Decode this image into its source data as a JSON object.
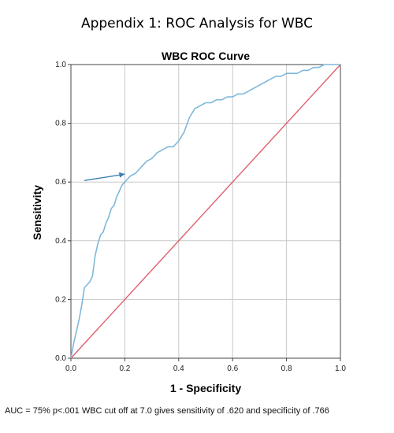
{
  "page": {
    "title": "Appendix 1: ROC Analysis for WBC",
    "footnote": "AUC = 75%  p<.001  WBC cut off at 7.0 gives sensitivity of .620 and specificity of .766"
  },
  "colors": {
    "roc_curve": "#7fb8da",
    "reference_line": "#e0606e",
    "arrow": "#3d82b0",
    "grid": "#c8c8c8",
    "axis": "#444444"
  },
  "chart_data": {
    "type": "line",
    "title": "WBC ROC Curve",
    "xlabel": "1 - Specificity",
    "ylabel": "Sensitivity",
    "xlim": [
      0,
      1
    ],
    "ylim": [
      0,
      1
    ],
    "x_ticks": [
      "0.0",
      "0.2",
      "0.4",
      "0.6",
      "0.8",
      "1.0"
    ],
    "y_ticks": [
      "0.0",
      "0.2",
      "0.4",
      "0.6",
      "0.8",
      "1.0"
    ],
    "grid": true,
    "series": [
      {
        "kind": "roc",
        "points": [
          [
            0.0,
            0.0
          ],
          [
            0.01,
            0.05
          ],
          [
            0.02,
            0.09
          ],
          [
            0.03,
            0.13
          ],
          [
            0.04,
            0.18
          ],
          [
            0.05,
            0.24
          ],
          [
            0.06,
            0.25
          ],
          [
            0.07,
            0.26
          ],
          [
            0.08,
            0.28
          ],
          [
            0.09,
            0.35
          ],
          [
            0.1,
            0.39
          ],
          [
            0.11,
            0.42
          ],
          [
            0.12,
            0.43
          ],
          [
            0.13,
            0.46
          ],
          [
            0.14,
            0.48
          ],
          [
            0.15,
            0.51
          ],
          [
            0.16,
            0.52
          ],
          [
            0.17,
            0.55
          ],
          [
            0.18,
            0.57
          ],
          [
            0.19,
            0.59
          ],
          [
            0.2,
            0.6
          ],
          [
            0.21,
            0.61
          ],
          [
            0.22,
            0.62
          ],
          [
            0.24,
            0.63
          ],
          [
            0.26,
            0.65
          ],
          [
            0.28,
            0.67
          ],
          [
            0.3,
            0.68
          ],
          [
            0.32,
            0.7
          ],
          [
            0.34,
            0.71
          ],
          [
            0.36,
            0.72
          ],
          [
            0.38,
            0.72
          ],
          [
            0.4,
            0.74
          ],
          [
            0.42,
            0.77
          ],
          [
            0.44,
            0.82
          ],
          [
            0.46,
            0.85
          ],
          [
            0.48,
            0.86
          ],
          [
            0.5,
            0.87
          ],
          [
            0.52,
            0.87
          ],
          [
            0.54,
            0.88
          ],
          [
            0.56,
            0.88
          ],
          [
            0.58,
            0.89
          ],
          [
            0.6,
            0.89
          ],
          [
            0.62,
            0.9
          ],
          [
            0.64,
            0.9
          ],
          [
            0.66,
            0.91
          ],
          [
            0.68,
            0.92
          ],
          [
            0.7,
            0.93
          ],
          [
            0.72,
            0.94
          ],
          [
            0.74,
            0.95
          ],
          [
            0.76,
            0.96
          ],
          [
            0.78,
            0.96
          ],
          [
            0.8,
            0.97
          ],
          [
            0.82,
            0.97
          ],
          [
            0.84,
            0.97
          ],
          [
            0.86,
            0.98
          ],
          [
            0.88,
            0.98
          ],
          [
            0.9,
            0.99
          ],
          [
            0.92,
            0.99
          ],
          [
            0.94,
            1.0
          ],
          [
            0.96,
            1.0
          ],
          [
            1.0,
            1.0
          ]
        ]
      },
      {
        "kind": "reference",
        "points": [
          [
            0,
            0
          ],
          [
            1,
            1
          ]
        ]
      }
    ],
    "annotations": [
      {
        "type": "arrow",
        "from": [
          0.05,
          0.605
        ],
        "to": [
          0.2,
          0.627
        ]
      }
    ]
  }
}
